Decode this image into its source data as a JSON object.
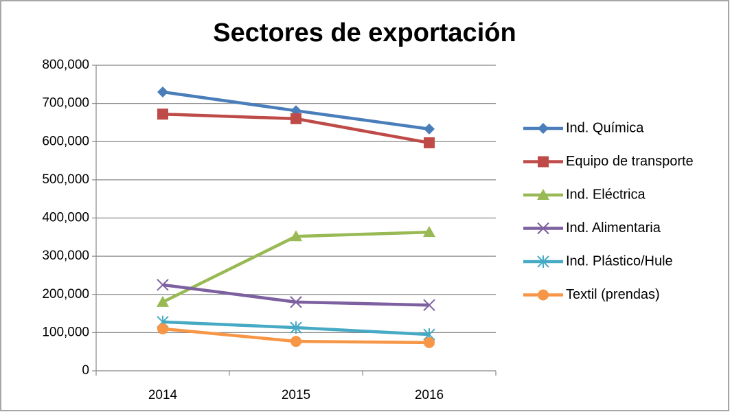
{
  "chart_data": {
    "type": "line",
    "title": "Sectores de exportación",
    "categories": [
      "2014",
      "2015",
      "2016"
    ],
    "series": [
      {
        "name": "Ind. Química",
        "color": "#4a7ebb",
        "marker": "diamond",
        "values": [
          730000,
          681000,
          633000
        ]
      },
      {
        "name": "Equipo de transporte",
        "color": "#be4b48",
        "marker": "square",
        "values": [
          672000,
          660000,
          597000
        ]
      },
      {
        "name": "Ind. Eléctrica",
        "color": "#98b954",
        "marker": "triangle",
        "values": [
          180000,
          352000,
          363000
        ]
      },
      {
        "name": "Ind. Alimentaria",
        "color": "#7d60a0",
        "marker": "x",
        "values": [
          225000,
          180000,
          172000
        ]
      },
      {
        "name": "Ind. Plástico/Hule",
        "color": "#46aac5",
        "marker": "star",
        "values": [
          128000,
          113000,
          95000
        ]
      },
      {
        "name": "Textil (prendas)",
        "color": "#f79646",
        "marker": "circle",
        "values": [
          110000,
          77000,
          74000
        ]
      }
    ],
    "ylim": [
      0,
      800000
    ],
    "yticks": [
      0,
      {
        "value": 100000,
        "label": "100,000"
      },
      {
        "value": 200000,
        "label": "200,000"
      },
      {
        "value": 300000,
        "label": "300,000"
      },
      {
        "value": 400000,
        "label": "400,000"
      },
      {
        "value": 500000,
        "label": "500,000"
      },
      {
        "value": 600000,
        "label": "600,000"
      },
      {
        "value": 700000,
        "label": "700,000"
      },
      {
        "value": 800000,
        "label": "800,000"
      }
    ],
    "grid": true,
    "legend": "right"
  }
}
